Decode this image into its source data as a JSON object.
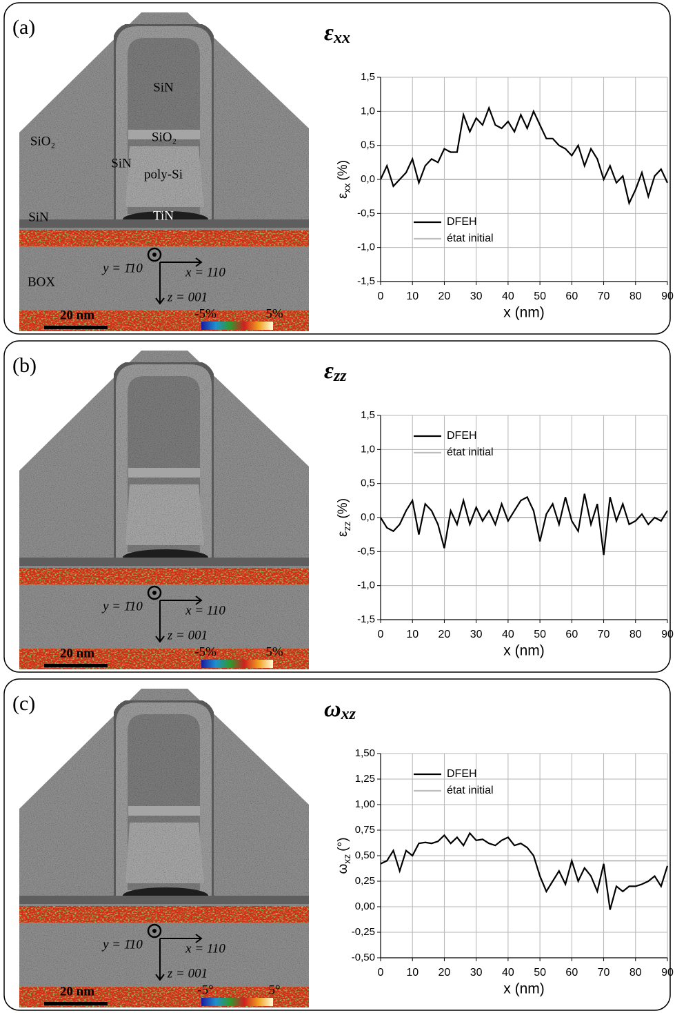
{
  "images": [
    {
      "panel_label": "(a)",
      "materials": [
        "SiN",
        "SiO₂",
        "SiO₂",
        "SiN",
        "poly-Si",
        "SiN",
        "TiN",
        "BOX"
      ],
      "axes": [
        "y = 1̄10",
        "x = 110",
        "z = 001"
      ],
      "scale_bar": "20 nm",
      "color_min": "-5%",
      "color_max": "5%"
    },
    {
      "panel_label": "(b)",
      "axes": [
        "y = 1̄10",
        "x = 110",
        "z = 001"
      ],
      "scale_bar": "20 nm",
      "color_min": "-5%",
      "color_max": "5%"
    },
    {
      "panel_label": "(c)",
      "axes": [
        "y = 1̄10",
        "x = 110",
        "z = 001"
      ],
      "scale_bar": "20 nm",
      "color_min": "-5°",
      "color_max": "5°"
    }
  ],
  "chart_data": [
    {
      "type": "line",
      "title": "ε",
      "title_subscript": "xx",
      "ylabel": "ε",
      "ylabel_subscript": "xx",
      "ylabel_unit": "(%)",
      "xlabel": "x (nm)",
      "x": [
        0,
        2,
        4,
        6,
        8,
        10,
        12,
        14,
        16,
        18,
        20,
        22,
        24,
        26,
        28,
        30,
        32,
        34,
        36,
        38,
        40,
        42,
        44,
        46,
        48,
        50,
        52,
        54,
        56,
        58,
        60,
        62,
        64,
        66,
        68,
        70,
        72,
        74,
        76,
        78,
        80,
        82,
        84,
        86,
        88,
        90
      ],
      "series": [
        {
          "name": "DFEH",
          "color": "#000000",
          "values": [
            0.0,
            0.2,
            -0.1,
            0.0,
            0.1,
            0.3,
            -0.05,
            0.2,
            0.3,
            0.25,
            0.45,
            0.4,
            0.4,
            0.95,
            0.7,
            0.9,
            0.8,
            1.05,
            0.8,
            0.75,
            0.85,
            0.7,
            0.95,
            0.75,
            1.0,
            0.8,
            0.6,
            0.6,
            0.5,
            0.45,
            0.35,
            0.5,
            0.2,
            0.45,
            0.3,
            0.0,
            0.2,
            -0.05,
            0.05,
            -0.35,
            -0.15,
            0.1,
            -0.25,
            0.05,
            0.15,
            -0.05
          ]
        },
        {
          "name": "état initial",
          "color": "#bdbdbd",
          "x": [
            0,
            90
          ],
          "values": [
            0,
            0
          ]
        }
      ],
      "xlim": [
        0,
        90
      ],
      "ylim": [
        -1.5,
        1.5
      ],
      "xticks": [
        0,
        10,
        20,
        30,
        40,
        50,
        60,
        70,
        80,
        90
      ],
      "yticks": [
        {
          "value": -1.5,
          "label": "-1,5"
        },
        {
          "value": -1.0,
          "label": "-1,0"
        },
        {
          "value": -0.5,
          "label": "-0,5"
        },
        {
          "value": 0,
          "label": "0,0"
        },
        {
          "value": 0.5,
          "label": "0,5"
        },
        {
          "value": 1.0,
          "label": "1,0"
        },
        {
          "value": 1.5,
          "label": "1,5"
        }
      ],
      "grid": true,
      "legend": "lower left"
    },
    {
      "type": "line",
      "title": "ε",
      "title_subscript": "zz",
      "ylabel": "ε",
      "ylabel_subscript": "zz",
      "ylabel_unit": "(%)",
      "xlabel": "x (nm)",
      "x": [
        0,
        2,
        4,
        6,
        8,
        10,
        12,
        14,
        16,
        18,
        20,
        22,
        24,
        26,
        28,
        30,
        32,
        34,
        36,
        38,
        40,
        42,
        44,
        46,
        48,
        50,
        52,
        54,
        56,
        58,
        60,
        62,
        64,
        66,
        68,
        70,
        72,
        74,
        76,
        78,
        80,
        82,
        84,
        86,
        88,
        90
      ],
      "series": [
        {
          "name": "DFEH",
          "color": "#000000",
          "values": [
            0.0,
            -0.15,
            -0.2,
            -0.1,
            0.1,
            0.25,
            -0.25,
            0.2,
            0.1,
            -0.1,
            -0.45,
            0.1,
            -0.1,
            0.25,
            -0.1,
            0.15,
            -0.05,
            0.1,
            -0.1,
            0.2,
            -0.05,
            0.1,
            0.25,
            0.3,
            0.1,
            -0.35,
            0.05,
            0.2,
            -0.1,
            0.3,
            -0.05,
            -0.2,
            0.35,
            -0.1,
            0.2,
            -0.55,
            0.3,
            -0.05,
            0.2,
            -0.1,
            -0.05,
            0.05,
            -0.1,
            0.0,
            -0.05,
            0.1
          ]
        },
        {
          "name": "état initial",
          "color": "#bdbdbd",
          "x": [
            0,
            90
          ],
          "values": [
            0,
            0
          ]
        }
      ],
      "xlim": [
        0,
        90
      ],
      "ylim": [
        -1.5,
        1.5
      ],
      "xticks": [
        0,
        10,
        20,
        30,
        40,
        50,
        60,
        70,
        80,
        90
      ],
      "yticks": [
        {
          "value": -1.5,
          "label": "-1,5"
        },
        {
          "value": -1.0,
          "label": "-1,0"
        },
        {
          "value": -0.5,
          "label": "-0,5"
        },
        {
          "value": 0,
          "label": "0,0"
        },
        {
          "value": 0.5,
          "label": "0,5"
        },
        {
          "value": 1.0,
          "label": "1,0"
        },
        {
          "value": 1.5,
          "label": "1,5"
        }
      ],
      "grid": true,
      "legend": "upper left"
    },
    {
      "type": "line",
      "title": "ω",
      "title_subscript": "xz",
      "ylabel": "ω",
      "ylabel_subscript": "xz",
      "ylabel_unit": "(°)",
      "xlabel": "x (nm)",
      "x": [
        0,
        2,
        4,
        6,
        8,
        10,
        12,
        14,
        16,
        18,
        20,
        22,
        24,
        26,
        28,
        30,
        32,
        34,
        36,
        38,
        40,
        42,
        44,
        46,
        48,
        50,
        52,
        54,
        56,
        58,
        60,
        62,
        64,
        66,
        68,
        70,
        72,
        74,
        76,
        78,
        80,
        82,
        84,
        86,
        88,
        90
      ],
      "series": [
        {
          "name": "DFEH",
          "color": "#000000",
          "values": [
            0.42,
            0.45,
            0.55,
            0.35,
            0.55,
            0.5,
            0.62,
            0.63,
            0.62,
            0.64,
            0.7,
            0.62,
            0.68,
            0.6,
            0.72,
            0.65,
            0.66,
            0.62,
            0.6,
            0.65,
            0.68,
            0.6,
            0.62,
            0.58,
            0.5,
            0.3,
            0.15,
            0.25,
            0.35,
            0.22,
            0.45,
            0.25,
            0.38,
            0.3,
            0.15,
            0.42,
            -0.03,
            0.2,
            0.15,
            0.2,
            0.2,
            0.22,
            0.25,
            0.3,
            0.2,
            0.4
          ]
        },
        {
          "name": "état initial",
          "color": "#bdbdbd",
          "x": [
            0,
            90
          ],
          "values": [
            0.45,
            0.45
          ]
        }
      ],
      "xlim": [
        0,
        90
      ],
      "ylim": [
        -0.5,
        1.5
      ],
      "xticks": [
        0,
        10,
        20,
        30,
        40,
        50,
        60,
        70,
        80,
        90
      ],
      "yticks": [
        {
          "value": -0.5,
          "label": "-0,50"
        },
        {
          "value": -0.25,
          "label": "-0,25"
        },
        {
          "value": 0,
          "label": "0,00"
        },
        {
          "value": 0.25,
          "label": "0,25"
        },
        {
          "value": 0.5,
          "label": "0,50"
        },
        {
          "value": 0.75,
          "label": "0,75"
        },
        {
          "value": 1.0,
          "label": "1,00"
        },
        {
          "value": 1.25,
          "label": "1,25"
        },
        {
          "value": 1.5,
          "label": "1,50"
        }
      ],
      "grid": true,
      "legend": "upper left"
    }
  ]
}
